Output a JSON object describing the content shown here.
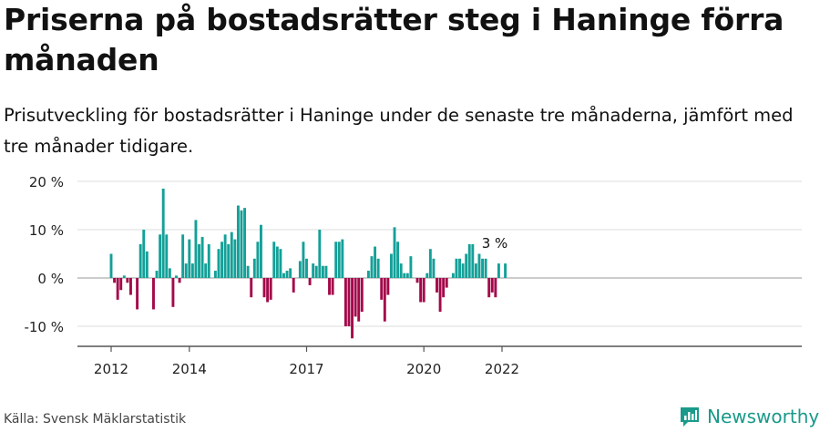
{
  "title": "Priserna på bostadsrätter steg i Haninge förra månaden",
  "subtitle": "Prisutveckling för bostadsrätter i Haninge under de senaste tre månaderna, jämfört med tre månader tidigare.",
  "source": "Källa: Svensk Mäklarstatistik",
  "brand": "Newsworthy",
  "colors": {
    "positive": "#14a098",
    "negative": "#a3084a",
    "axis": "#555555",
    "grid": "#dddddd"
  },
  "chart_data": {
    "type": "bar",
    "ylim": [
      -14,
      22
    ],
    "yticks": [
      {
        "value": -10,
        "label": "-10 %"
      },
      {
        "value": 0,
        "label": "0 %"
      },
      {
        "value": 10,
        "label": "10 %"
      },
      {
        "value": 20,
        "label": "20 %"
      }
    ],
    "xticks": [
      {
        "index": 0,
        "label": "2012"
      },
      {
        "index": 24,
        "label": "2014"
      },
      {
        "index": 60,
        "label": "2017"
      },
      {
        "index": 96,
        "label": "2020"
      },
      {
        "index": 120,
        "label": "2022"
      }
    ],
    "annotation": {
      "index": 120,
      "label": "3 %"
    },
    "values": [
      5,
      -1,
      -4.5,
      -2.5,
      0.5,
      -1,
      -3.5,
      0,
      -6.5,
      7,
      10,
      5.5,
      0,
      -6.5,
      1.5,
      9,
      18.5,
      9,
      2,
      -6,
      0.5,
      -1,
      9,
      3,
      8,
      3,
      12,
      7,
      8.5,
      3,
      7,
      0,
      1.5,
      6,
      7.5,
      9,
      7,
      9.5,
      8,
      15,
      14,
      14.5,
      2.5,
      -4,
      4,
      7.5,
      11,
      -4,
      -5,
      -4.5,
      7.5,
      6.5,
      6,
      1,
      1.5,
      2,
      -3,
      0,
      3.5,
      7.5,
      4,
      -1.5,
      3,
      2.5,
      10,
      2.5,
      2.5,
      -3.5,
      -3.5,
      7.5,
      7.5,
      8,
      -10,
      -10,
      -12.5,
      -8,
      -9,
      -7,
      0,
      1.5,
      4.5,
      6.5,
      4,
      -4.5,
      -9,
      -3.5,
      5,
      10.5,
      7.5,
      3,
      1,
      1,
      4.5,
      0,
      -1,
      -5,
      -5,
      1,
      6,
      4,
      -3,
      -7,
      -4,
      -2,
      0,
      1,
      4,
      4,
      3,
      5,
      7,
      7,
      3,
      5,
      4,
      4,
      -4,
      -3,
      -4,
      3,
      0,
      3
    ]
  }
}
